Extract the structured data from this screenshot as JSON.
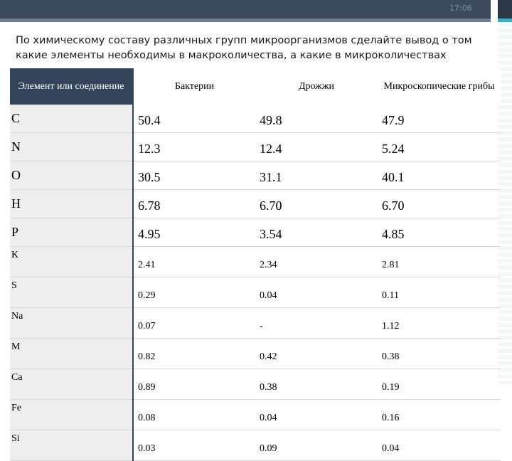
{
  "header": {
    "time": "17:06"
  },
  "slide": {
    "title": "По химическому составу различных групп микроорганизмов сделайте вывод о том какие элементы необходимы в макроколичества, а какие в микроколичествах"
  },
  "table": {
    "headers": [
      "Элемент или соединение",
      "Бактерии",
      "Дрожжи",
      "Микроскопические грибы"
    ],
    "rows": [
      [
        "C",
        "50.4",
        "49.8",
        "47.9"
      ],
      [
        "N",
        "12.3",
        "12.4",
        "5.24"
      ],
      [
        "O",
        "30.5",
        "31.1",
        "40.1"
      ],
      [
        "H",
        "6.78",
        "6.70",
        "6.70"
      ],
      [
        "P",
        "4.95",
        "3.54",
        "4.85"
      ],
      [
        "K",
        "2.41",
        "2.34",
        "2.81"
      ],
      [
        "S",
        "0.29",
        "0.04",
        "0.11"
      ],
      [
        "Na",
        "0.07",
        "-",
        "1.12"
      ],
      [
        "M",
        "0.82",
        "0.42",
        "0.38"
      ],
      [
        "Ca",
        "0.89",
        "0.38",
        "0.19"
      ],
      [
        "Fe",
        "0.08",
        "0.04",
        "0.16"
      ],
      [
        "Si",
        "0.03",
        "0.09",
        "0.04"
      ]
    ]
  },
  "colors": {
    "header_bg": "#34455b",
    "top_bar": "#3b4a5c",
    "accent": "#35b2c7"
  }
}
